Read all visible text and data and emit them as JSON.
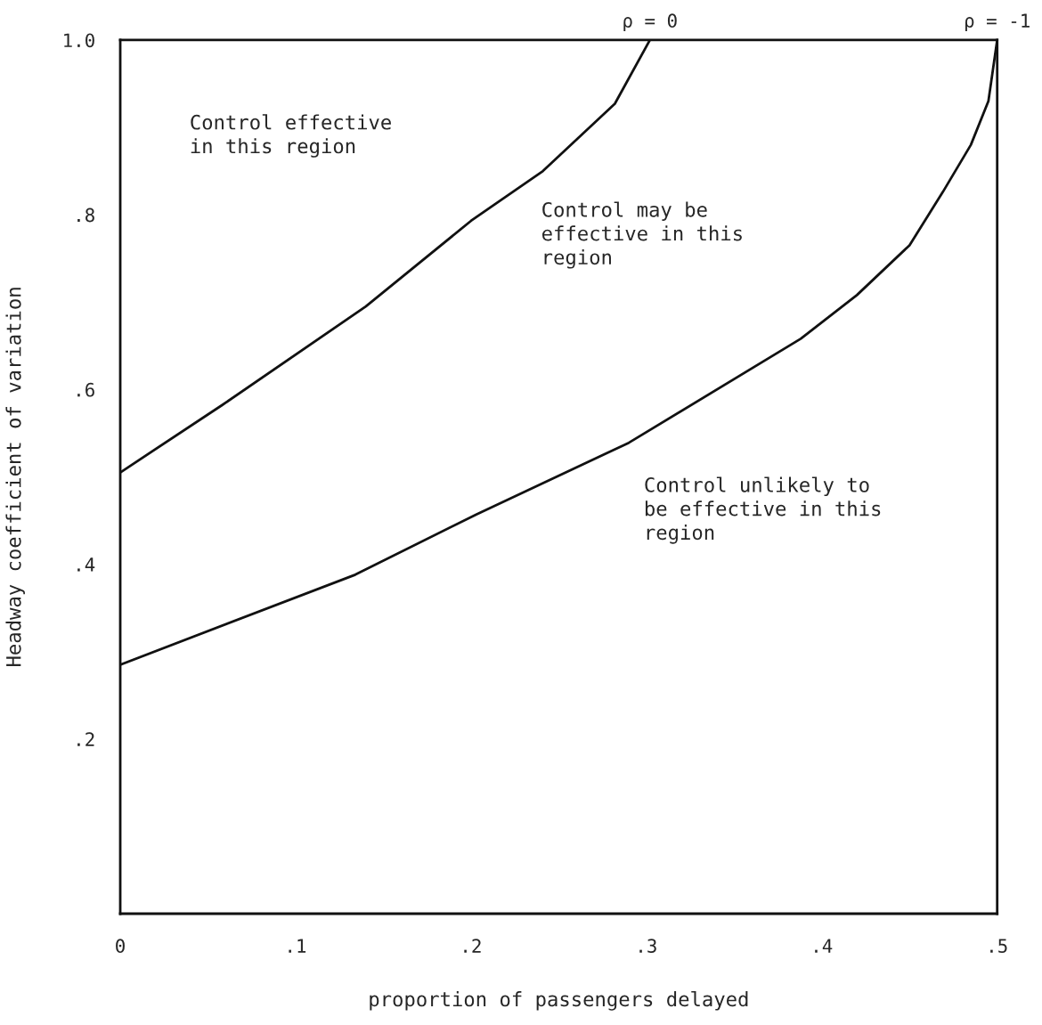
{
  "chart_data": {
    "type": "line",
    "xlabel": "proportion of passengers delayed",
    "ylabel": "Headway coefficient of variation",
    "xlim": [
      0,
      0.5
    ],
    "ylim": [
      0,
      1.0
    ],
    "xticks": [
      0,
      {
        "value": 0.1,
        "label": ".1"
      },
      {
        "value": 0.2,
        "label": ".2"
      },
      {
        "value": 0.3,
        "label": ".3"
      },
      {
        "value": 0.4,
        "label": ".4"
      },
      {
        "value": 0.5,
        "label": ".5"
      }
    ],
    "yticks": [
      {
        "value": 0.2,
        "label": ".2"
      },
      {
        "value": 0.4,
        "label": ".4"
      },
      {
        "value": 0.6,
        "label": ".6"
      },
      {
        "value": 0.8,
        "label": ".8"
      },
      {
        "value": 1.0,
        "label": "1.0"
      }
    ],
    "grid": false,
    "legend": false,
    "marker": "none",
    "line_style": "solid",
    "series": [
      {
        "name": "ρ = 0",
        "color": "#111111",
        "x": [
          0,
          0.058,
          0.14,
          0.2,
          0.241,
          0.282,
          0.302
        ],
        "values": [
          0.505,
          0.582,
          0.695,
          0.793,
          0.85,
          0.927,
          1.0
        ]
      },
      {
        "name": "ρ = -1",
        "color": "#111111",
        "x": [
          0,
          0.134,
          0.203,
          0.29,
          0.388,
          0.42,
          0.45,
          0.469,
          0.485,
          0.495,
          0.5
        ],
        "values": [
          0.285,
          0.388,
          0.457,
          0.539,
          0.658,
          0.708,
          0.765,
          0.826,
          0.88,
          0.93,
          1.0
        ]
      }
    ],
    "annotations": [
      "Control effective\nin this region",
      "Control may be\neffective in this\nregion",
      "Control unlikely to\nbe effective in this\nregion"
    ]
  }
}
